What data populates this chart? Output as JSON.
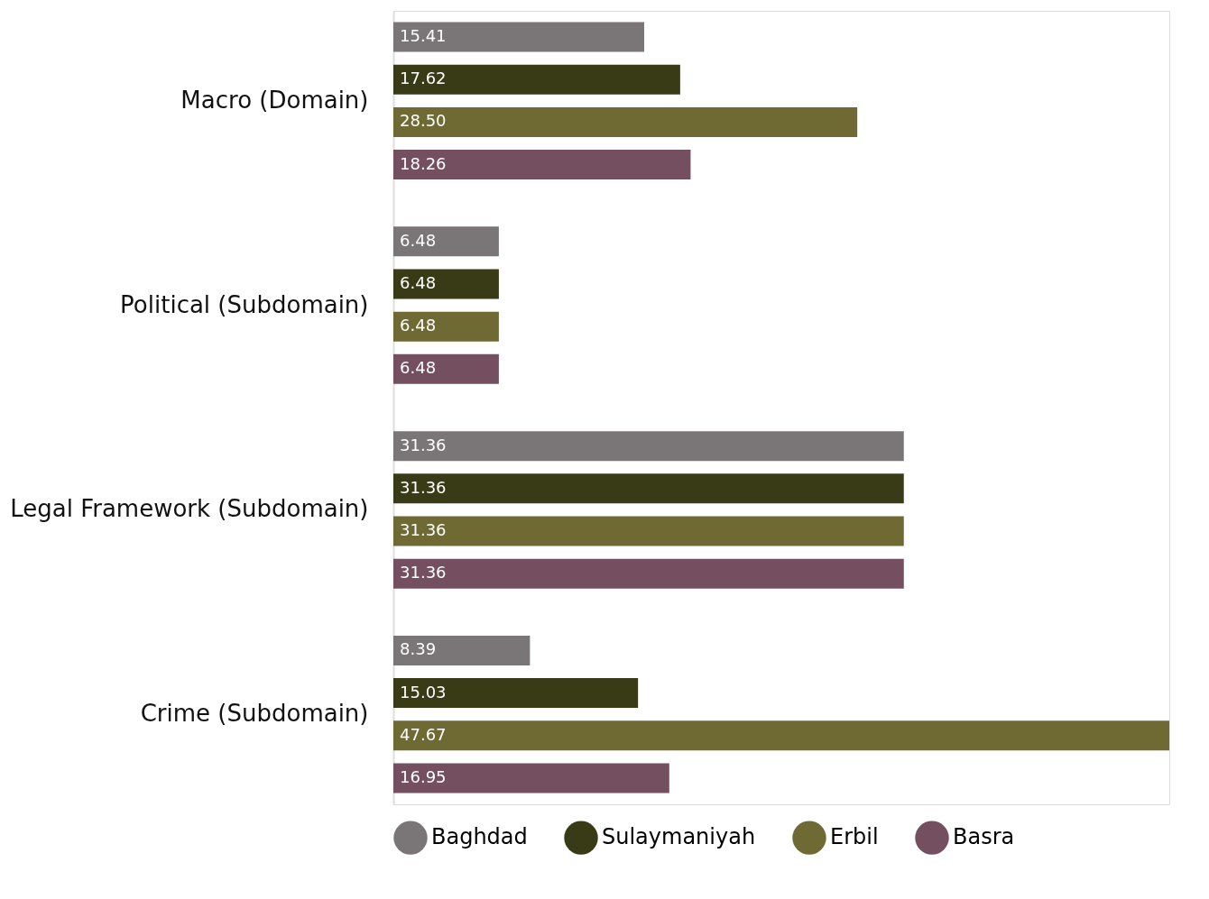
{
  "chart_data": {
    "type": "bar",
    "orientation": "horizontal",
    "legend": "bottom",
    "grid": false,
    "categories": [
      "Macro (Domain)",
      "Political (Subdomain)",
      "Legal Framework (Subdomain)",
      "Crime (Subdomain)"
    ],
    "series": [
      {
        "name": "Baghdad",
        "color": "#7a7577",
        "values": [
          15.41,
          6.48,
          31.36,
          8.39
        ],
        "value_labels": [
          "15.41",
          "6.48",
          "31.36",
          "8.39"
        ]
      },
      {
        "name": "Sulaymaniyah",
        "color": "#393a16",
        "values": [
          17.62,
          6.48,
          31.36,
          15.03
        ],
        "value_labels": [
          "17.62",
          "6.48",
          "31.36",
          "15.03"
        ]
      },
      {
        "name": "Erbil",
        "color": "#6f6a33",
        "values": [
          28.5,
          6.48,
          31.36,
          47.67
        ],
        "value_labels": [
          "28.50",
          "6.48",
          "31.36",
          "47.67"
        ]
      },
      {
        "name": "Basra",
        "color": "#734f5f",
        "values": [
          18.26,
          6.48,
          31.36,
          16.95
        ],
        "value_labels": [
          "18.26",
          "6.48",
          "31.36",
          "16.95"
        ]
      }
    ]
  }
}
